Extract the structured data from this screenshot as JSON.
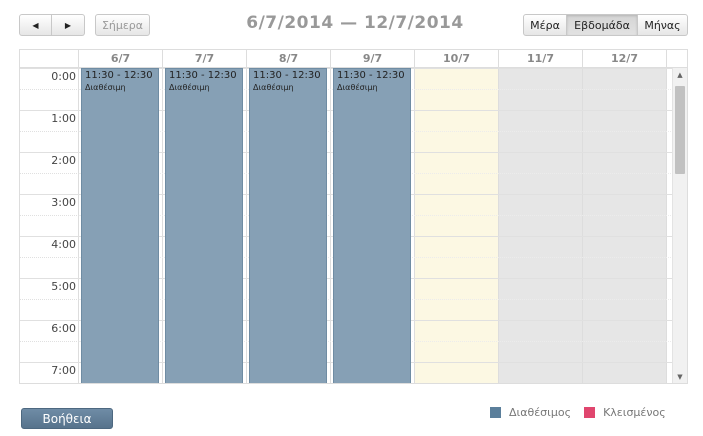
{
  "toolbar": {
    "prev_icon": "◀",
    "next_icon": "▶",
    "today_label": "Σήμερα",
    "range_title": "6/7/2014 — 12/7/2014",
    "views": [
      "Μέρα",
      "Εβδομάδα",
      "Μήνας"
    ],
    "active_view": "Εβδομάδα"
  },
  "days": [
    {
      "label": "6/7",
      "state": "event"
    },
    {
      "label": "7/7",
      "state": "event"
    },
    {
      "label": "8/7",
      "state": "event"
    },
    {
      "label": "9/7",
      "state": "event"
    },
    {
      "label": "10/7",
      "state": "today"
    },
    {
      "label": "11/7",
      "state": "disabled"
    },
    {
      "label": "12/7",
      "state": "disabled"
    }
  ],
  "hours": [
    "0:00",
    "1:00",
    "2:00",
    "3:00",
    "4:00",
    "5:00",
    "6:00",
    "7:00"
  ],
  "events": [
    {
      "day": 0,
      "time": "11:30 - 12:30",
      "title": "Διαθέσιμη"
    },
    {
      "day": 1,
      "time": "11:30 - 12:30",
      "title": "Διαθέσιμη"
    },
    {
      "day": 2,
      "time": "11:30 - 12:30",
      "title": "Διαθέσιμη"
    },
    {
      "day": 3,
      "time": "11:30 - 12:30",
      "title": "Διαθέσιμη"
    }
  ],
  "scroll_icons": {
    "up": "▲",
    "down": "▼"
  },
  "footer": {
    "help_label": "Βοήθεια",
    "legend": [
      {
        "label": "Διαθέσιμος",
        "color": "#5b7f9b"
      },
      {
        "label": "Κλεισμένος",
        "color": "#e0466e"
      }
    ]
  },
  "colors": {
    "event_bg": "#86a0b5",
    "today_bg": "#fcf8e3",
    "disabled_bg": "#e6e6e6"
  }
}
